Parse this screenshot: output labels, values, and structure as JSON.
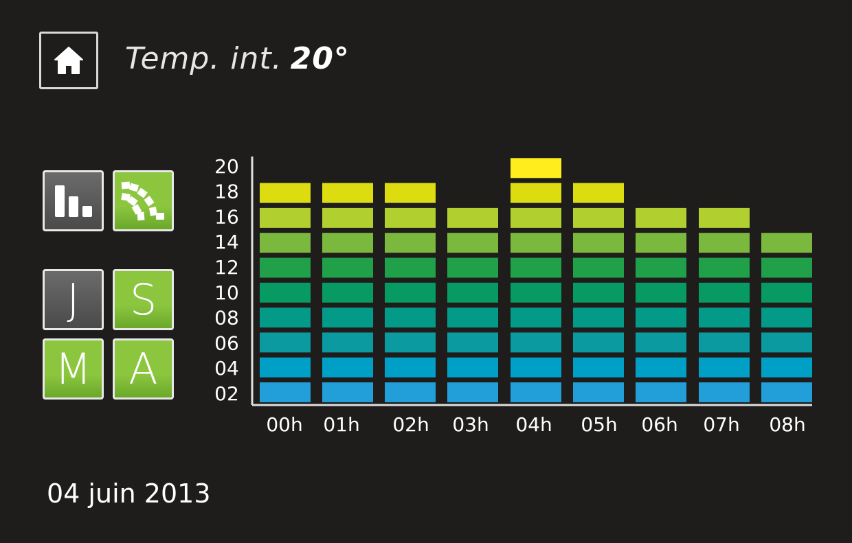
{
  "header": {
    "title_label": "Temp. int.",
    "title_value": "20°",
    "home_icon": "home-icon"
  },
  "side_buttons": {
    "bar_chart_icon": "bar-chart-icon",
    "fan_chart_icon": "fan-chart-icon",
    "periods": [
      {
        "label": "J",
        "active": false
      },
      {
        "label": "S",
        "active": true
      },
      {
        "label": "M",
        "active": true
      },
      {
        "label": "A",
        "active": true
      }
    ]
  },
  "colors": {
    "background": "#1e1d1c",
    "levels": [
      "#229fd8",
      "#00a0c6",
      "#0a9aa0",
      "#039a88",
      "#079a62",
      "#1fa049",
      "#7ab93d",
      "#b2cf30",
      "#dcdc10",
      "#ffed1d"
    ]
  },
  "chart_data": {
    "type": "bar",
    "categories": [
      "00h",
      "01h",
      "02h",
      "03h",
      "04h",
      "05h",
      "06h",
      "07h",
      "08h"
    ],
    "values": [
      18,
      18,
      18,
      16,
      20,
      18,
      16,
      16,
      14
    ],
    "y_ticks": [
      "02",
      "04",
      "06",
      "08",
      "10",
      "12",
      "14",
      "16",
      "18",
      "20"
    ],
    "ylim": [
      0,
      20
    ],
    "step": 2,
    "grid": false,
    "legend": "none"
  },
  "footer": {
    "date": "04 juin 2013"
  }
}
